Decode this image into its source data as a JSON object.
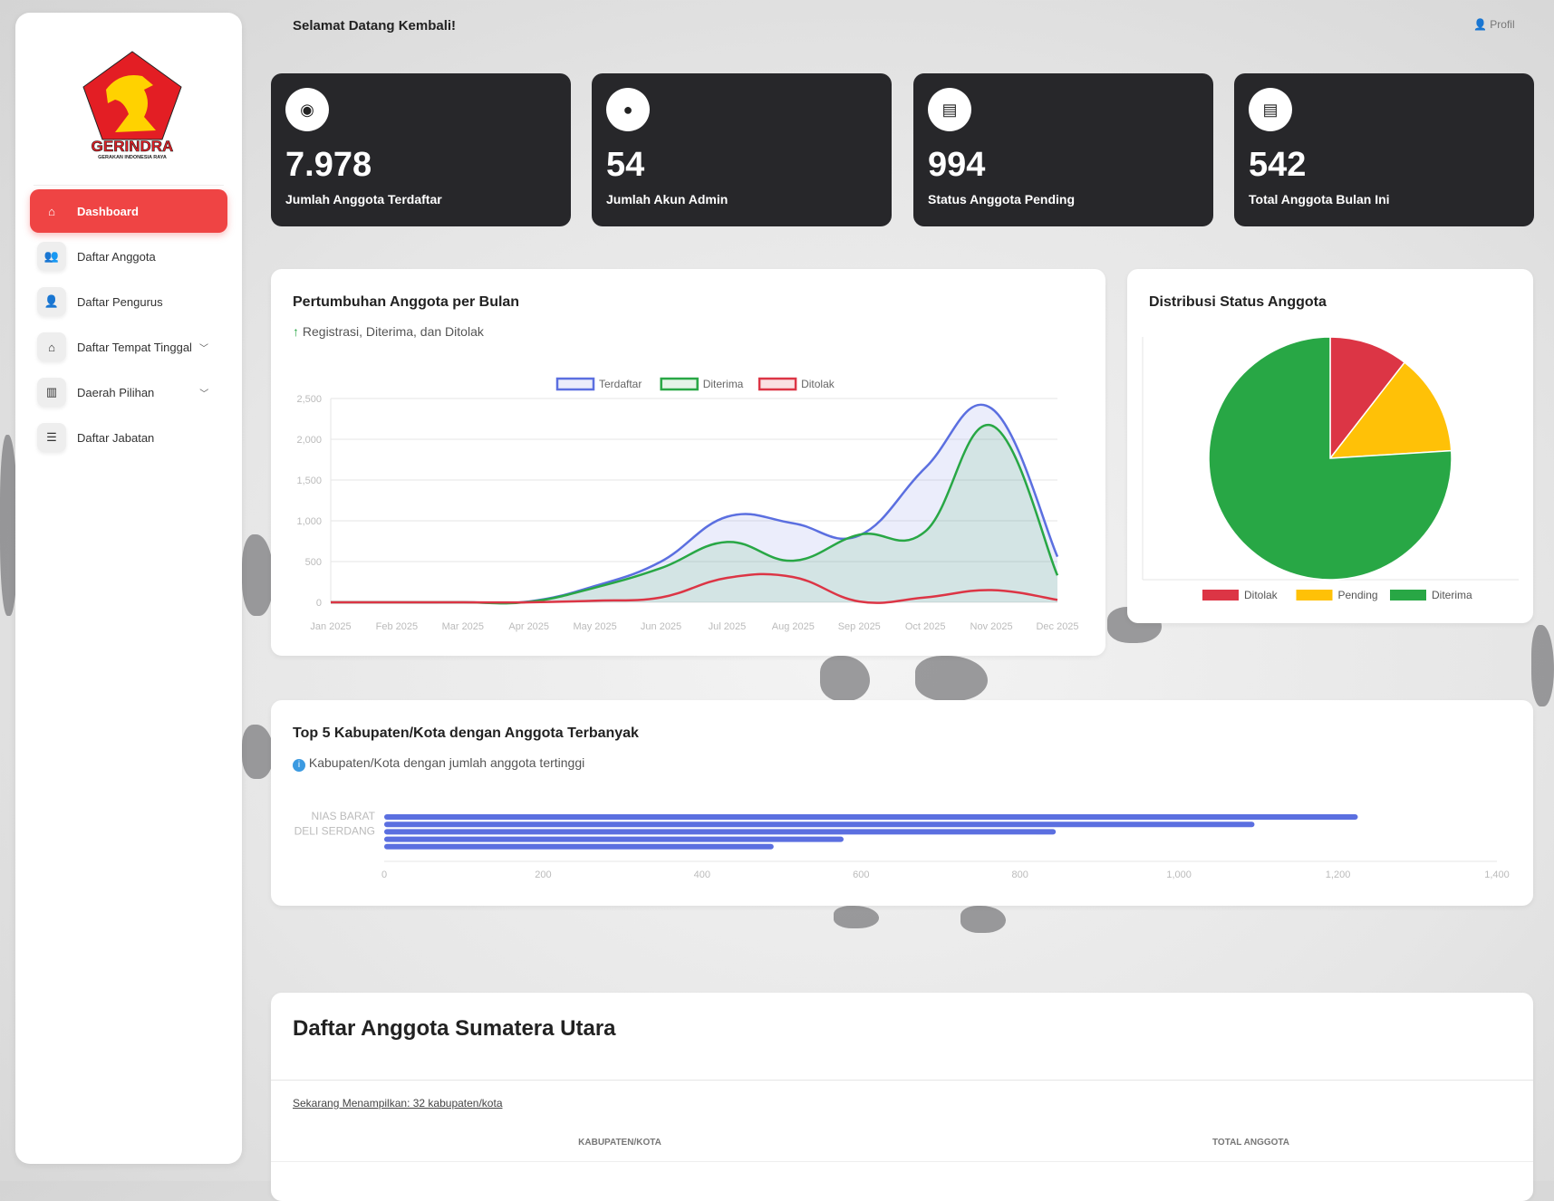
{
  "sidebar": {
    "logo_text": "GERINDRA",
    "logo_subtext": "GERAKAN INDONESIA RAYA",
    "items": [
      {
        "label": "Dashboard",
        "icon": "home-icon"
      },
      {
        "label": "Daftar Anggota",
        "icon": "users-icon"
      },
      {
        "label": "Daftar Pengurus",
        "icon": "user-tie-icon"
      },
      {
        "label": "Daftar Tempat Tinggal",
        "icon": "house-user-icon"
      },
      {
        "label": "Daerah Pilihan",
        "icon": "city-icon"
      },
      {
        "label": "Daftar Jabatan",
        "icon": "list-check-icon"
      }
    ]
  },
  "header": {
    "welcome": "Selamat Datang Kembali!",
    "profile": "Profil"
  },
  "stats": [
    {
      "value": "7.978",
      "label": "Jumlah Anggota Terdaftar"
    },
    {
      "value": "54",
      "label": "Jumlah Akun Admin"
    },
    {
      "value": "994",
      "label": "Status Anggota Pending"
    },
    {
      "value": "542",
      "label": "Total Anggota Bulan Ini"
    }
  ],
  "colors": {
    "accent": "#ef4444",
    "terdaftar": "#5b6fe0",
    "diterima": "#28a745",
    "ditolak": "#dc3545",
    "pending": "#ffc107"
  },
  "line_card": {
    "title": "Pertumbuhan Anggota per Bulan",
    "subtitle": "Registrasi, Diterima, dan Ditolak"
  },
  "pie_card": {
    "title": "Distribusi Status Anggota"
  },
  "bar_card": {
    "title": "Top 5 Kabupaten/Kota dengan Anggota Terbanyak",
    "subtitle": "Kabupaten/Kota dengan jumlah anggota tertinggi"
  },
  "table_card": {
    "title": "Daftar Anggota Sumatera Utara",
    "showing": "Sekarang Menampilkan: 32 kabupaten/kota",
    "columns": [
      "KABUPATEN/KOTA",
      "TOTAL ANGGOTA"
    ]
  },
  "chart_data": [
    {
      "type": "line",
      "title": "Pertumbuhan Anggota per Bulan",
      "categories": [
        "Jan 2025",
        "Feb 2025",
        "Mar 2025",
        "Apr 2025",
        "May 2025",
        "Jun 2025",
        "Jul 2025",
        "Aug 2025",
        "Sep 2025",
        "Oct 2025",
        "Nov 2025",
        "Dec 2025"
      ],
      "series": [
        {
          "name": "Terdaftar",
          "values": [
            0,
            0,
            0,
            10,
            200,
            500,
            1050,
            970,
            820,
            1650,
            2380,
            560
          ]
        },
        {
          "name": "Diterima",
          "values": [
            0,
            0,
            0,
            5,
            180,
            420,
            740,
            510,
            830,
            870,
            2170,
            330
          ]
        },
        {
          "name": "Ditolak",
          "values": [
            0,
            0,
            0,
            0,
            20,
            60,
            300,
            310,
            10,
            60,
            150,
            30
          ]
        }
      ],
      "ylim": [
        0,
        2500
      ],
      "yticks": [
        "0",
        "500",
        "1,000",
        "1,500",
        "2,000",
        "2,500"
      ],
      "legend": "top"
    },
    {
      "type": "pie",
      "title": "Distribusi Status Anggota",
      "labels": [
        "Ditolak",
        "Pending",
        "Diterima"
      ],
      "values": [
        10.5,
        13.5,
        76
      ],
      "legend": "bottom"
    },
    {
      "type": "bar",
      "orientation": "horizontal",
      "title": "Top 5 Kabupaten/Kota dengan Anggota Terbanyak",
      "categories": [
        "NIAS BARAT",
        "",
        "DELI SERDANG",
        "",
        ""
      ],
      "values": [
        1225,
        1095,
        845,
        578,
        490
      ],
      "xlim": [
        0,
        1400
      ],
      "xticks": [
        "0",
        "200",
        "400",
        "600",
        "800",
        "1,000",
        "1,200",
        "1,400"
      ]
    }
  ]
}
